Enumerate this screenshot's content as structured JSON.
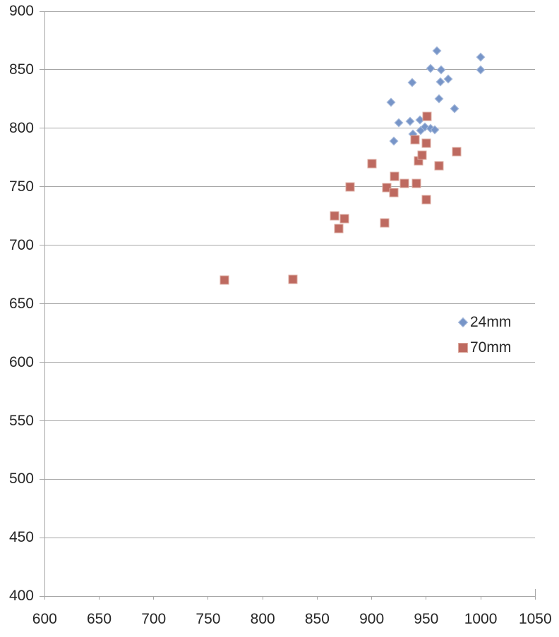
{
  "chart_data": {
    "type": "scatter",
    "title": "",
    "xlabel": "",
    "ylabel": "",
    "xlim": [
      600,
      1050
    ],
    "ylim": [
      400,
      900
    ],
    "x_ticks": [
      600,
      650,
      700,
      750,
      800,
      850,
      900,
      950,
      1000,
      1050
    ],
    "y_ticks": [
      400,
      450,
      500,
      550,
      600,
      650,
      700,
      750,
      800,
      850,
      900
    ],
    "grid": "horizontal",
    "legend_position": "right-middle",
    "series": [
      {
        "name": "24mm",
        "marker": "diamond",
        "color": "#7795C8",
        "border_color": "#A9BCDC",
        "points": [
          [
            960,
            866
          ],
          [
            1000,
            861
          ],
          [
            954,
            851
          ],
          [
            964,
            850
          ],
          [
            1000,
            850
          ],
          [
            937,
            839
          ],
          [
            963,
            840
          ],
          [
            970,
            842
          ],
          [
            962,
            825
          ],
          [
            918,
            822
          ],
          [
            976,
            817
          ],
          [
            925,
            805
          ],
          [
            935,
            806
          ],
          [
            944,
            807
          ],
          [
            945,
            798
          ],
          [
            949,
            801
          ],
          [
            954,
            800
          ],
          [
            958,
            799
          ],
          [
            938,
            795
          ],
          [
            920,
            789
          ]
        ]
      },
      {
        "name": "70mm",
        "marker": "square",
        "color": "#BE6A60",
        "border_color": "#DCABA0",
        "points": [
          [
            765,
            670
          ],
          [
            828,
            671
          ],
          [
            866,
            725
          ],
          [
            875,
            723
          ],
          [
            870,
            714
          ],
          [
            880,
            750
          ],
          [
            900,
            770
          ],
          [
            912,
            719
          ],
          [
            914,
            749
          ],
          [
            920,
            745
          ],
          [
            921,
            759
          ],
          [
            930,
            753
          ],
          [
            941,
            753
          ],
          [
            943,
            772
          ],
          [
            946,
            777
          ],
          [
            950,
            787
          ],
          [
            940,
            790
          ],
          [
            951,
            810
          ],
          [
            962,
            768
          ],
          [
            978,
            780
          ],
          [
            950,
            739
          ]
        ]
      }
    ],
    "colors": {
      "gridline": "#A6A6A6",
      "axis": "#A6A6A6",
      "label": "#262626"
    }
  },
  "legend": {
    "items": [
      {
        "label": "24mm"
      },
      {
        "label": "70mm"
      }
    ]
  }
}
